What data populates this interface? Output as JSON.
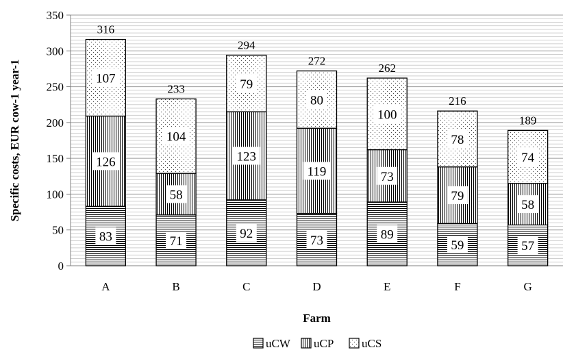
{
  "chart_data": {
    "type": "bar",
    "stacked": true,
    "categories": [
      "A",
      "B",
      "C",
      "D",
      "E",
      "F",
      "G"
    ],
    "series": [
      {
        "name": "uCW",
        "values": [
          83,
          71,
          92,
          73,
          89,
          59,
          57
        ],
        "pattern": "horizontal-lines"
      },
      {
        "name": "uCP",
        "values": [
          126,
          58,
          123,
          119,
          73,
          79,
          58
        ],
        "pattern": "vertical-lines"
      },
      {
        "name": "uCS",
        "values": [
          107,
          104,
          79,
          80,
          100,
          78,
          74
        ],
        "pattern": "dots"
      }
    ],
    "totals": [
      316,
      233,
      294,
      272,
      262,
      216,
      189
    ],
    "xlabel": "Farm",
    "ylabel": "Specific costs, EUR cow-1 year-1",
    "ylim": [
      0,
      350
    ],
    "yticks": [
      0,
      50,
      100,
      150,
      200,
      250,
      300,
      350
    ],
    "grid": true,
    "legend_position": "bottom"
  }
}
